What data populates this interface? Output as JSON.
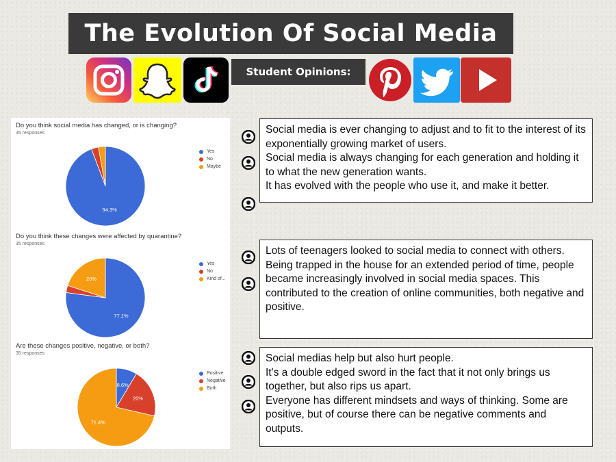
{
  "header": {
    "title": "The Evolution Of Social Media",
    "subtitle": "Student Opinions:"
  },
  "icons": [
    "instagram-icon",
    "snapchat-icon",
    "tiktok-icon",
    "pinterest-icon",
    "twitter-icon",
    "youtube-icon"
  ],
  "colors": {
    "blue": "#3c6ad6",
    "red": "#d8402b",
    "orange": "#f69c12"
  },
  "chart_data": [
    {
      "type": "pie",
      "title": "Do you think social media has changed, or is changing?",
      "responses": "35 responses",
      "labels": [
        "Yes",
        "No",
        "Maybe"
      ],
      "values": [
        94.3,
        2.85,
        2.85
      ],
      "slice_labels": [
        "94.3%",
        "",
        ""
      ],
      "colors": [
        "#3c6ad6",
        "#d8402b",
        "#f69c12"
      ],
      "legend": "right"
    },
    {
      "type": "pie",
      "title": "Do you think these changes were affected by quarantine?",
      "responses": "35 responses",
      "labels": [
        "Yes",
        "No",
        "Kind of..."
      ],
      "values": [
        77.1,
        2.9,
        20
      ],
      "slice_labels": [
        "77.1%",
        "",
        "20%"
      ],
      "colors": [
        "#3c6ad6",
        "#d8402b",
        "#f69c12"
      ],
      "legend": "right"
    },
    {
      "type": "pie",
      "title": "Are these changes positive, negative, or both?",
      "responses": "35 responses",
      "labels": [
        "Positive",
        "Negative",
        "Both"
      ],
      "values": [
        8.6,
        20,
        71.4
      ],
      "slice_labels": [
        "8.6%",
        "20%",
        "71.4%"
      ],
      "colors": [
        "#3c6ad6",
        "#d8402b",
        "#f69c12"
      ],
      "legend": "right"
    }
  ],
  "opinions": [
    {
      "paragraphs": [
        "Social media is ever changing to adjust and to fit to the interest of its exponentially growing market of users.",
        "Social media is always changing for each generation and holding it to what the new generation wants.",
        "It has evolved with the people who use it, and make it better."
      ]
    },
    {
      "paragraphs": [
        "Lots of teenagers looked to social media to connect with others.",
        "Being trapped in the house for an extended period of time, people became increasingly involved in social media spaces. This contributed to the creation of online communities, both negative and positive."
      ]
    },
    {
      "paragraphs": [
        "Social medias help but also hurt people.",
        "It's a double edged sword in the fact that it not only brings us together, but also rips us apart.",
        "Everyone has different mindsets and ways of thinking. Some are positive, but of course there can be negative comments and outputs."
      ]
    }
  ]
}
